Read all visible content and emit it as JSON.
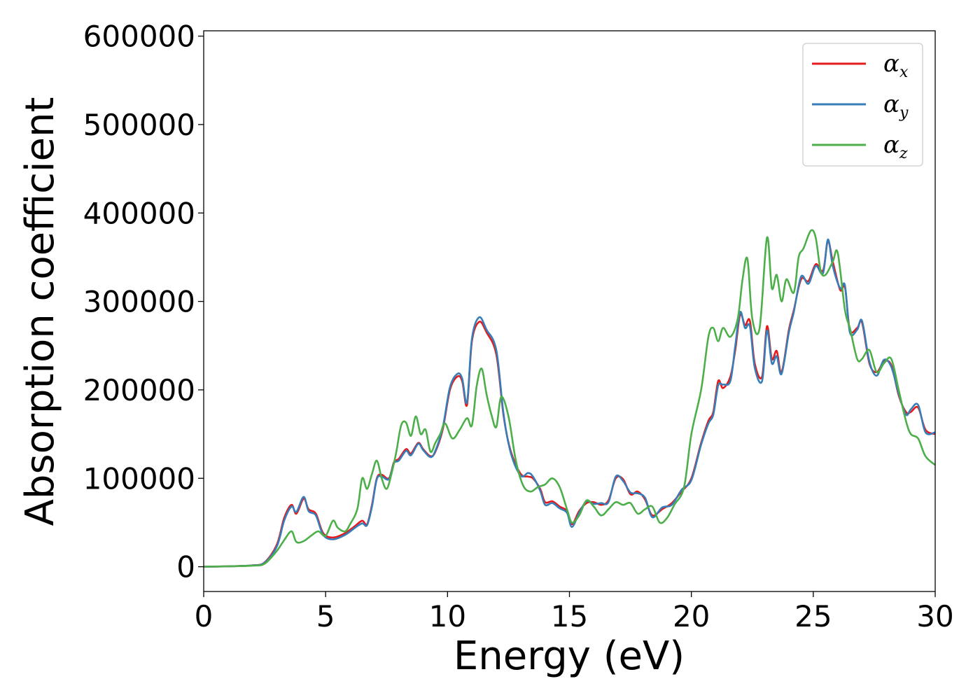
{
  "chart_data": {
    "type": "line",
    "xlabel": "Energy (eV)",
    "ylabel": "Absorption coefficient",
    "xlim": [
      0,
      30
    ],
    "ylim": [
      -28000,
      606000
    ],
    "xticks": [
      0,
      5,
      10,
      15,
      20,
      25,
      30
    ],
    "yticks": [
      0,
      100000,
      200000,
      300000,
      400000,
      500000,
      600000
    ],
    "grid": false,
    "legend_position": "top-right",
    "series": [
      {
        "name": "α_x",
        "symbol": "α",
        "subscript": "x",
        "color": "#e41a1c",
        "x": [
          0,
          1,
          2,
          2.5,
          3,
          3.3,
          3.6,
          3.8,
          4.1,
          4.3,
          4.6,
          4.9,
          5.3,
          5.8,
          6.2,
          6.5,
          6.7,
          6.9,
          7.1,
          7.3,
          7.6,
          7.8,
          8.0,
          8.3,
          8.5,
          8.8,
          9.0,
          9.3,
          9.5,
          9.8,
          10.1,
          10.4,
          10.6,
          10.8,
          11.0,
          11.3,
          11.6,
          12.0,
          12.3,
          12.6,
          13.0,
          13.3,
          13.5,
          13.8,
          14.0,
          14.3,
          14.6,
          14.9,
          15.1,
          15.4,
          15.7,
          16.0,
          16.3,
          16.6,
          16.9,
          17.2,
          17.5,
          17.8,
          18.1,
          18.4,
          18.8,
          19.2,
          19.6,
          20.0,
          20.4,
          20.7,
          20.9,
          21.1,
          21.3,
          21.6,
          21.8,
          22.0,
          22.2,
          22.4,
          22.6,
          22.9,
          23.1,
          23.3,
          23.5,
          23.7,
          24.0,
          24.2,
          24.5,
          24.8,
          25.1,
          25.4,
          25.6,
          25.8,
          26.1,
          26.3,
          26.5,
          26.8,
          27.0,
          27.3,
          27.6,
          27.9,
          28.2,
          28.5,
          28.8,
          29.0,
          29.3,
          29.6,
          30.0
        ],
        "values": [
          0,
          500,
          1500,
          5000,
          25000,
          55000,
          70000,
          60000,
          77000,
          65000,
          60000,
          38000,
          33000,
          38000,
          46000,
          52000,
          48000,
          70000,
          100000,
          104000,
          100000,
          118000,
          122000,
          133000,
          128000,
          140000,
          133000,
          125000,
          130000,
          155000,
          200000,
          215000,
          210000,
          183000,
          255000,
          277000,
          265000,
          240000,
          170000,
          130000,
          105000,
          102000,
          100000,
          88000,
          73000,
          74000,
          68000,
          63000,
          48000,
          63000,
          72000,
          73000,
          70000,
          75000,
          100000,
          99000,
          82000,
          85000,
          76000,
          58000,
          65000,
          72000,
          85000,
          100000,
          140000,
          165000,
          175000,
          210000,
          202000,
          215000,
          245000,
          285000,
          273000,
          278000,
          230000,
          215000,
          272000,
          235000,
          244000,
          220000,
          268000,
          290000,
          325000,
          323000,
          342000,
          335000,
          368000,
          345000,
          313000,
          316000,
          268000,
          270000,
          276000,
          230000,
          220000,
          232000,
          228000,
          194000,
          175000,
          175000,
          180000,
          155000,
          150000
        ]
      },
      {
        "name": "α_y",
        "symbol": "α",
        "subscript": "y",
        "color": "#377eb8",
        "x": [
          0,
          1,
          2,
          2.5,
          3,
          3.3,
          3.6,
          3.8,
          4.1,
          4.3,
          4.6,
          4.9,
          5.3,
          5.8,
          6.2,
          6.5,
          6.7,
          6.9,
          7.1,
          7.3,
          7.6,
          7.8,
          8.0,
          8.3,
          8.5,
          8.8,
          9.0,
          9.3,
          9.5,
          9.8,
          10.1,
          10.4,
          10.6,
          10.8,
          11.0,
          11.3,
          11.6,
          12.0,
          12.3,
          12.6,
          13.0,
          13.3,
          13.5,
          13.8,
          14.0,
          14.3,
          14.6,
          14.9,
          15.1,
          15.4,
          15.7,
          16.0,
          16.3,
          16.6,
          16.9,
          17.2,
          17.5,
          17.8,
          18.1,
          18.4,
          18.8,
          19.2,
          19.6,
          20.0,
          20.4,
          20.7,
          20.9,
          21.1,
          21.3,
          21.6,
          21.8,
          22.0,
          22.2,
          22.4,
          22.6,
          22.9,
          23.1,
          23.3,
          23.5,
          23.7,
          24.0,
          24.2,
          24.5,
          24.8,
          25.1,
          25.4,
          25.6,
          25.8,
          26.1,
          26.3,
          26.5,
          26.8,
          27.0,
          27.3,
          27.6,
          27.9,
          28.2,
          28.5,
          28.8,
          29.0,
          29.3,
          29.6,
          30.0
        ],
        "values": [
          0,
          500,
          1500,
          4500,
          23000,
          52000,
          68000,
          62000,
          79000,
          63000,
          58000,
          36000,
          31000,
          36000,
          44000,
          49000,
          47000,
          68000,
          99000,
          102000,
          99000,
          117000,
          120000,
          131000,
          126000,
          139000,
          132000,
          124000,
          131000,
          157000,
          203000,
          218000,
          213000,
          186000,
          258000,
          282000,
          268000,
          245000,
          172000,
          128000,
          103000,
          106000,
          102000,
          86000,
          70000,
          72000,
          66000,
          61000,
          45000,
          61000,
          74000,
          71000,
          72000,
          73000,
          102000,
          97000,
          84000,
          83000,
          78000,
          56000,
          67000,
          70000,
          87000,
          98000,
          138000,
          162000,
          172000,
          205000,
          206000,
          210000,
          250000,
          288000,
          270000,
          272000,
          225000,
          210000,
          267000,
          230000,
          238000,
          218000,
          265000,
          288000,
          328000,
          320000,
          340000,
          332000,
          370000,
          340000,
          315000,
          318000,
          265000,
          268000,
          278000,
          232000,
          216000,
          234000,
          226000,
          196000,
          172000,
          178000,
          183000,
          152000,
          152000
        ]
      },
      {
        "name": "α_z",
        "symbol": "α",
        "subscript": "z",
        "color": "#4daf4a",
        "x": [
          0,
          1,
          2,
          2.5,
          3,
          3.3,
          3.6,
          3.8,
          4.1,
          4.4,
          4.7,
          5.0,
          5.3,
          5.5,
          5.8,
          6.0,
          6.3,
          6.5,
          6.7,
          6.9,
          7.1,
          7.3,
          7.5,
          7.7,
          7.9,
          8.1,
          8.3,
          8.5,
          8.7,
          8.9,
          9.1,
          9.3,
          9.5,
          9.7,
          9.9,
          10.2,
          10.5,
          10.8,
          11.0,
          11.2,
          11.4,
          11.6,
          11.8,
          12.0,
          12.2,
          12.5,
          12.8,
          13.1,
          13.4,
          13.7,
          14.0,
          14.3,
          14.6,
          14.9,
          15.1,
          15.4,
          15.7,
          16.0,
          16.3,
          16.6,
          16.9,
          17.2,
          17.5,
          17.8,
          18.1,
          18.4,
          18.7,
          19.0,
          19.3,
          19.7,
          20.0,
          20.4,
          20.7,
          20.9,
          21.1,
          21.3,
          21.6,
          21.9,
          22.1,
          22.3,
          22.5,
          22.8,
          23.1,
          23.3,
          23.5,
          23.7,
          23.9,
          24.2,
          24.4,
          24.6,
          24.9,
          25.1,
          25.3,
          25.5,
          25.8,
          26.0,
          26.3,
          26.5,
          26.8,
          27.0,
          27.3,
          27.6,
          27.9,
          28.2,
          28.5,
          28.8,
          29.0,
          29.3,
          29.6,
          30.0
        ],
        "values": [
          0,
          500,
          1200,
          3500,
          18000,
          30000,
          40000,
          28000,
          29000,
          35000,
          40000,
          35000,
          52000,
          44000,
          40000,
          48000,
          65000,
          100000,
          88000,
          105000,
          120000,
          100000,
          88000,
          105000,
          130000,
          160000,
          163000,
          148000,
          170000,
          150000,
          155000,
          130000,
          140000,
          150000,
          162000,
          145000,
          155000,
          168000,
          160000,
          205000,
          224000,
          195000,
          172000,
          158000,
          192000,
          170000,
          120000,
          92000,
          85000,
          90000,
          93000,
          100000,
          90000,
          65000,
          50000,
          58000,
          75000,
          68000,
          58000,
          65000,
          73000,
          70000,
          72000,
          60000,
          65000,
          68000,
          50000,
          55000,
          70000,
          90000,
          150000,
          200000,
          260000,
          270000,
          255000,
          270000,
          260000,
          280000,
          325000,
          348000,
          280000,
          270000,
          372000,
          315000,
          330000,
          300000,
          325000,
          310000,
          350000,
          360000,
          380000,
          372000,
          335000,
          330000,
          345000,
          355000,
          290000,
          270000,
          235000,
          235000,
          245000,
          220000,
          230000,
          235000,
          200000,
          165000,
          150000,
          145000,
          125000,
          115000
        ]
      }
    ]
  }
}
